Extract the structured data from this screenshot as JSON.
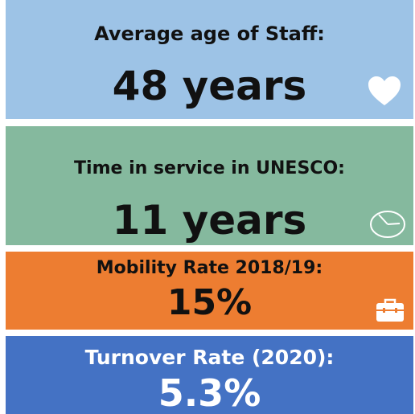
{
  "tiles": [
    {
      "label": "Average age of Staff:",
      "value": "48 years"
    },
    {
      "label": "Time in service in UNESCO:",
      "value": "11 years"
    },
    {
      "label": "Mobility Rate 2018/19:",
      "value": "15%"
    },
    {
      "label": "Turnover Rate (2020):",
      "value": "5.3%"
    }
  ]
}
